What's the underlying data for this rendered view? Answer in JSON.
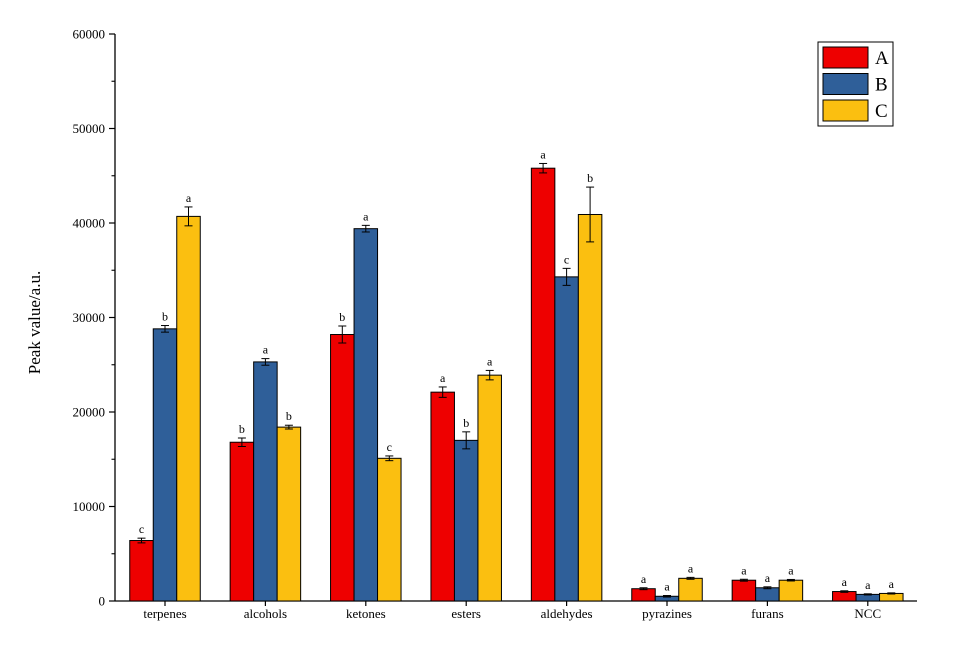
{
  "chart_data": {
    "type": "bar",
    "title": "",
    "xlabel": "",
    "ylabel": "Peak value/a.u.",
    "ylim": [
      0,
      60000
    ],
    "yticks": [
      0,
      10000,
      20000,
      30000,
      40000,
      50000,
      60000
    ],
    "grid": false,
    "legend_position": "top-right",
    "categories": [
      "terpenes",
      "alcohols",
      "ketones",
      "esters",
      "aldehydes",
      "pyrazines",
      "furans",
      "NCC"
    ],
    "series": [
      {
        "name": "A",
        "color": "#ee0000",
        "values": [
          6400,
          16800,
          28200,
          22100,
          45800,
          1300,
          2200,
          1000
        ],
        "errors": [
          250,
          450,
          900,
          550,
          500,
          100,
          100,
          80
        ],
        "letters": [
          "c",
          "b",
          "b",
          "a",
          "a",
          "a",
          "a",
          "a"
        ]
      },
      {
        "name": "B",
        "color": "#2f5f99",
        "values": [
          28800,
          25300,
          39400,
          17000,
          34300,
          500,
          1400,
          700
        ],
        "errors": [
          350,
          350,
          350,
          900,
          900,
          80,
          100,
          60
        ],
        "letters": [
          "b",
          "a",
          "a",
          "b",
          "c",
          "a",
          "a",
          "a"
        ]
      },
      {
        "name": "C",
        "color": "#fbbf10",
        "values": [
          40700,
          18400,
          15100,
          23900,
          40900,
          2400,
          2200,
          800
        ],
        "errors": [
          1000,
          200,
          250,
          500,
          2900,
          100,
          80,
          60
        ],
        "letters": [
          "a",
          "b",
          "c",
          "a",
          "b",
          "a",
          "a",
          "a"
        ]
      }
    ]
  }
}
